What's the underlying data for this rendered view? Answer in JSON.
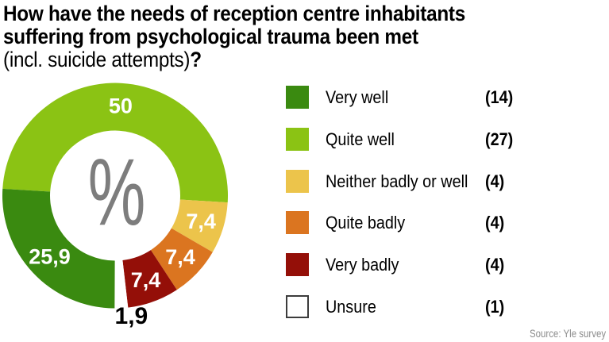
{
  "title": {
    "line1": "How have the needs of reception centre inhabitants",
    "line2": "suffering from psychological trauma been met",
    "line3_regular": "(incl. suicide attempts)",
    "line3_bold": "?"
  },
  "chart_data": {
    "type": "pie",
    "donut": true,
    "unit": "%",
    "title": "How have the needs of reception centre inhabitants suffering from psychological trauma been met (incl. suicide attempts)?",
    "center_label": "%",
    "start_angle_deg": -86.5,
    "legend_position": "right",
    "segments": [
      {
        "label": "Quite well",
        "pct": 50,
        "pct_display": "50",
        "count": 27,
        "color": "#8BC314",
        "label_inside": true
      },
      {
        "label": "Neither badly or well",
        "pct": 7.4,
        "pct_display": "7,4",
        "count": 4,
        "color": "#ECC44B",
        "label_inside": true
      },
      {
        "label": "Quite badly",
        "pct": 7.4,
        "pct_display": "7,4",
        "count": 4,
        "color": "#DB7520",
        "label_inside": true
      },
      {
        "label": "Very badly",
        "pct": 7.4,
        "pct_display": "7,4",
        "count": 4,
        "color": "#940F08",
        "label_inside": true
      },
      {
        "label": "Unsure",
        "pct": 1.9,
        "pct_display": "1,9",
        "count": 1,
        "color": "#FFFFFF",
        "label_inside": false
      },
      {
        "label": "Very well",
        "pct": 25.9,
        "pct_display": "25,9",
        "count": 14,
        "color": "#3A8A10",
        "label_inside": true
      }
    ]
  },
  "legend": {
    "items": [
      {
        "label": "Very well",
        "count_display": "(14)",
        "color": "#3A8A10",
        "border": false
      },
      {
        "label": "Quite well",
        "count_display": "(27)",
        "color": "#8BC314",
        "border": false
      },
      {
        "label": "Neither badly or well",
        "count_display": "(4)",
        "color": "#ECC44B",
        "border": false
      },
      {
        "label": "Quite badly",
        "count_display": "(4)",
        "color": "#DB7520",
        "border": false
      },
      {
        "label": "Very badly",
        "count_display": "(4)",
        "color": "#940F08",
        "border": false
      },
      {
        "label": "Unsure",
        "count_display": "(1)",
        "color": "#FFFFFF",
        "border": true
      }
    ]
  },
  "colors": {
    "center_symbol": "#7D7D7D",
    "slice_label_inside": "#FFFFFF",
    "slice_label_outside": "#000000",
    "source_text": "#8C8C8C"
  },
  "source": "Source: Yle survey"
}
